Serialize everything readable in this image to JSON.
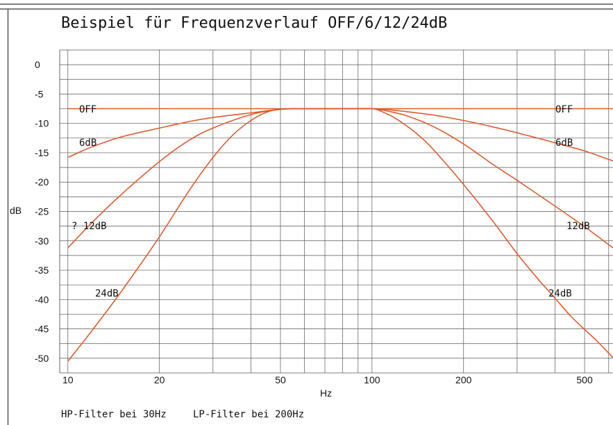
{
  "chart_data": {
    "type": "line",
    "title": "Beispiel für Frequenzverlauf OFF/6/12/24dB",
    "xlabel": "Hz",
    "ylabel": "dB",
    "x_scale": "log",
    "xlim": [
      9.4,
      620
    ],
    "ylim": [
      -52.5,
      2.5
    ],
    "x_ticks": [
      10,
      20,
      50,
      100,
      200,
      500
    ],
    "y_ticks": [
      0,
      -5,
      -10,
      -15,
      -20,
      -25,
      -30,
      -35,
      -40,
      -45,
      -50
    ],
    "x_tick_labels": [
      "10",
      "20",
      "50",
      "100",
      "200",
      "500"
    ],
    "y_tick_labels": [
      "0",
      "-5",
      "-10",
      "-15",
      "-20",
      "-25",
      "-30",
      "-35",
      "-40",
      "-45",
      "-50"
    ],
    "grid": true,
    "line_color": "#e05a2b",
    "series": [
      {
        "x": [
          10,
          620
        ],
        "y": [
          -7.5,
          -7.5
        ]
      },
      {
        "x": [
          10,
          12,
          15,
          20,
          25,
          30,
          40,
          50,
          60,
          80,
          100,
          110,
          130,
          160,
          200,
          250,
          300,
          400,
          500,
          620
        ],
        "y": [
          -15.8,
          -14.0,
          -12.3,
          -10.8,
          -9.7,
          -9.0,
          -8.2,
          -7.6,
          -7.5,
          -7.5,
          -7.5,
          -7.6,
          -8.0,
          -8.6,
          -9.5,
          -10.6,
          -11.6,
          -13.3,
          -14.7,
          -16.4
        ]
      },
      {
        "x": [
          10,
          12,
          15,
          20,
          25,
          30,
          40,
          50,
          60,
          80,
          100,
          110,
          130,
          160,
          200,
          250,
          300,
          400,
          500,
          620
        ],
        "y": [
          -31.2,
          -26.9,
          -22.1,
          -16.5,
          -12.9,
          -10.8,
          -8.5,
          -7.6,
          -7.5,
          -7.5,
          -7.5,
          -7.8,
          -8.7,
          -10.6,
          -13.5,
          -17.0,
          -19.7,
          -24.1,
          -27.6,
          -31.2
        ]
      },
      {
        "x": [
          10,
          12,
          15,
          20,
          25,
          30,
          35,
          40,
          45,
          50,
          60,
          80,
          100,
          110,
          120,
          140,
          160,
          200,
          250,
          300,
          350,
          400,
          450,
          500,
          550,
          620
        ],
        "y": [
          -50.5,
          -45.3,
          -38.6,
          -29.3,
          -21.5,
          -15.8,
          -11.9,
          -9.5,
          -8.1,
          -7.6,
          -7.5,
          -7.5,
          -7.5,
          -8.2,
          -9.2,
          -11.7,
          -14.6,
          -20.4,
          -26.7,
          -32.2,
          -36.4,
          -39.8,
          -42.8,
          -45.1,
          -47.1,
          -49.9
        ]
      }
    ],
    "annotations": {
      "left": [
        "OFF",
        "6dB",
        "? 12dB",
        "24dB"
      ],
      "right": [
        "OFF",
        "6dB",
        "12dB",
        "24dB"
      ]
    },
    "footnotes": [
      "HP-Filter bei 30Hz",
      "LP-Filter bei 200Hz"
    ]
  }
}
